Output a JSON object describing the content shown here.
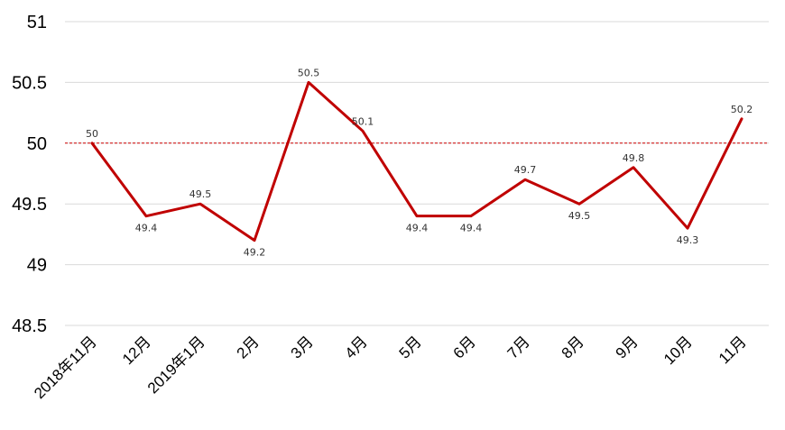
{
  "chart_data": {
    "type": "line",
    "categories": [
      "2018年11月",
      "12月",
      "2019年1月",
      "2月",
      "3月",
      "4月",
      "5月",
      "6月",
      "7月",
      "8月",
      "9月",
      "10月",
      "11月"
    ],
    "values": [
      50,
      49.4,
      49.5,
      49.2,
      50.5,
      50.1,
      49.4,
      49.4,
      49.7,
      49.5,
      49.8,
      49.3,
      50.2
    ],
    "data_labels": [
      "50",
      "49.4",
      "49.5",
      "49.2",
      "50.5",
      "50.1",
      "49.4",
      "49.4",
      "49.7",
      "49.5",
      "49.8",
      "49.3",
      "50.2"
    ],
    "ylim": [
      48.5,
      51
    ],
    "yticks": [
      48.5,
      49,
      49.5,
      50,
      50.5,
      51
    ],
    "ytick_labels": [
      "48.5",
      "49",
      "49.5",
      "50",
      "50.5",
      "51"
    ],
    "reference_line": 50,
    "grid": true,
    "title": "",
    "xlabel": "",
    "ylabel": "",
    "colors": {
      "line": "#c00000",
      "reference": "#d00000",
      "grid": "#d9d9d9"
    }
  }
}
